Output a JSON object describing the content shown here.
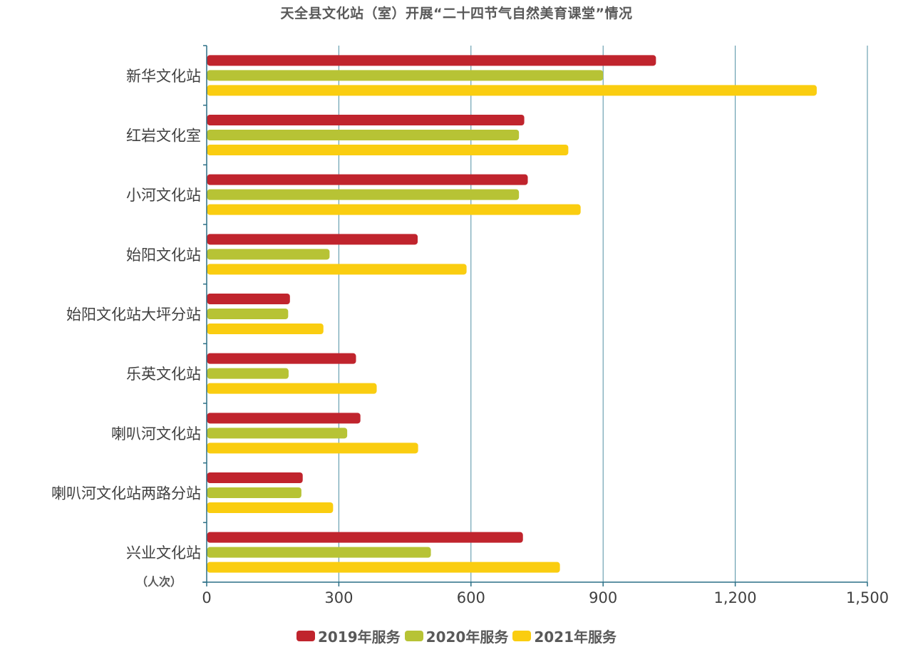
{
  "chart_data": {
    "type": "bar",
    "orientation": "horizontal",
    "title": "天全县文化站（室）开展“二十四节气自然美育课堂”情况",
    "xlabel": "",
    "ylabel": "",
    "unit_label": "（人次）",
    "xlim": [
      0,
      1500
    ],
    "xticks": [
      0,
      300,
      600,
      900,
      1200,
      1500
    ],
    "xtick_labels": [
      "0",
      "300",
      "600",
      "900",
      "1,200",
      "1,500"
    ],
    "grid": true,
    "legend_position": "bottom",
    "categories": [
      "新华文化站",
      "红岩文化室",
      "小河文化站",
      "始阳文化站",
      "始阳文化站大坪分站",
      "乐英文化站",
      "喇叭河文化站",
      "喇叭河文化站两路分站",
      "兴业文化站"
    ],
    "series": [
      {
        "name": "2019年服务",
        "color": "#c0242d",
        "values": [
          1020,
          721,
          729,
          479,
          189,
          339,
          349,
          218,
          718
        ]
      },
      {
        "name": "2020年服务",
        "color": "#b7c335",
        "values": [
          900,
          709,
          709,
          279,
          185,
          186,
          319,
          215,
          509
        ]
      },
      {
        "name": "2021年服务",
        "color": "#facd10",
        "values": [
          1385,
          821,
          849,
          590,
          265,
          386,
          480,
          287,
          802
        ]
      }
    ],
    "colors": {
      "gridline": "#4f8fa3",
      "axis": "#2a6f86",
      "text": "#404040"
    }
  }
}
